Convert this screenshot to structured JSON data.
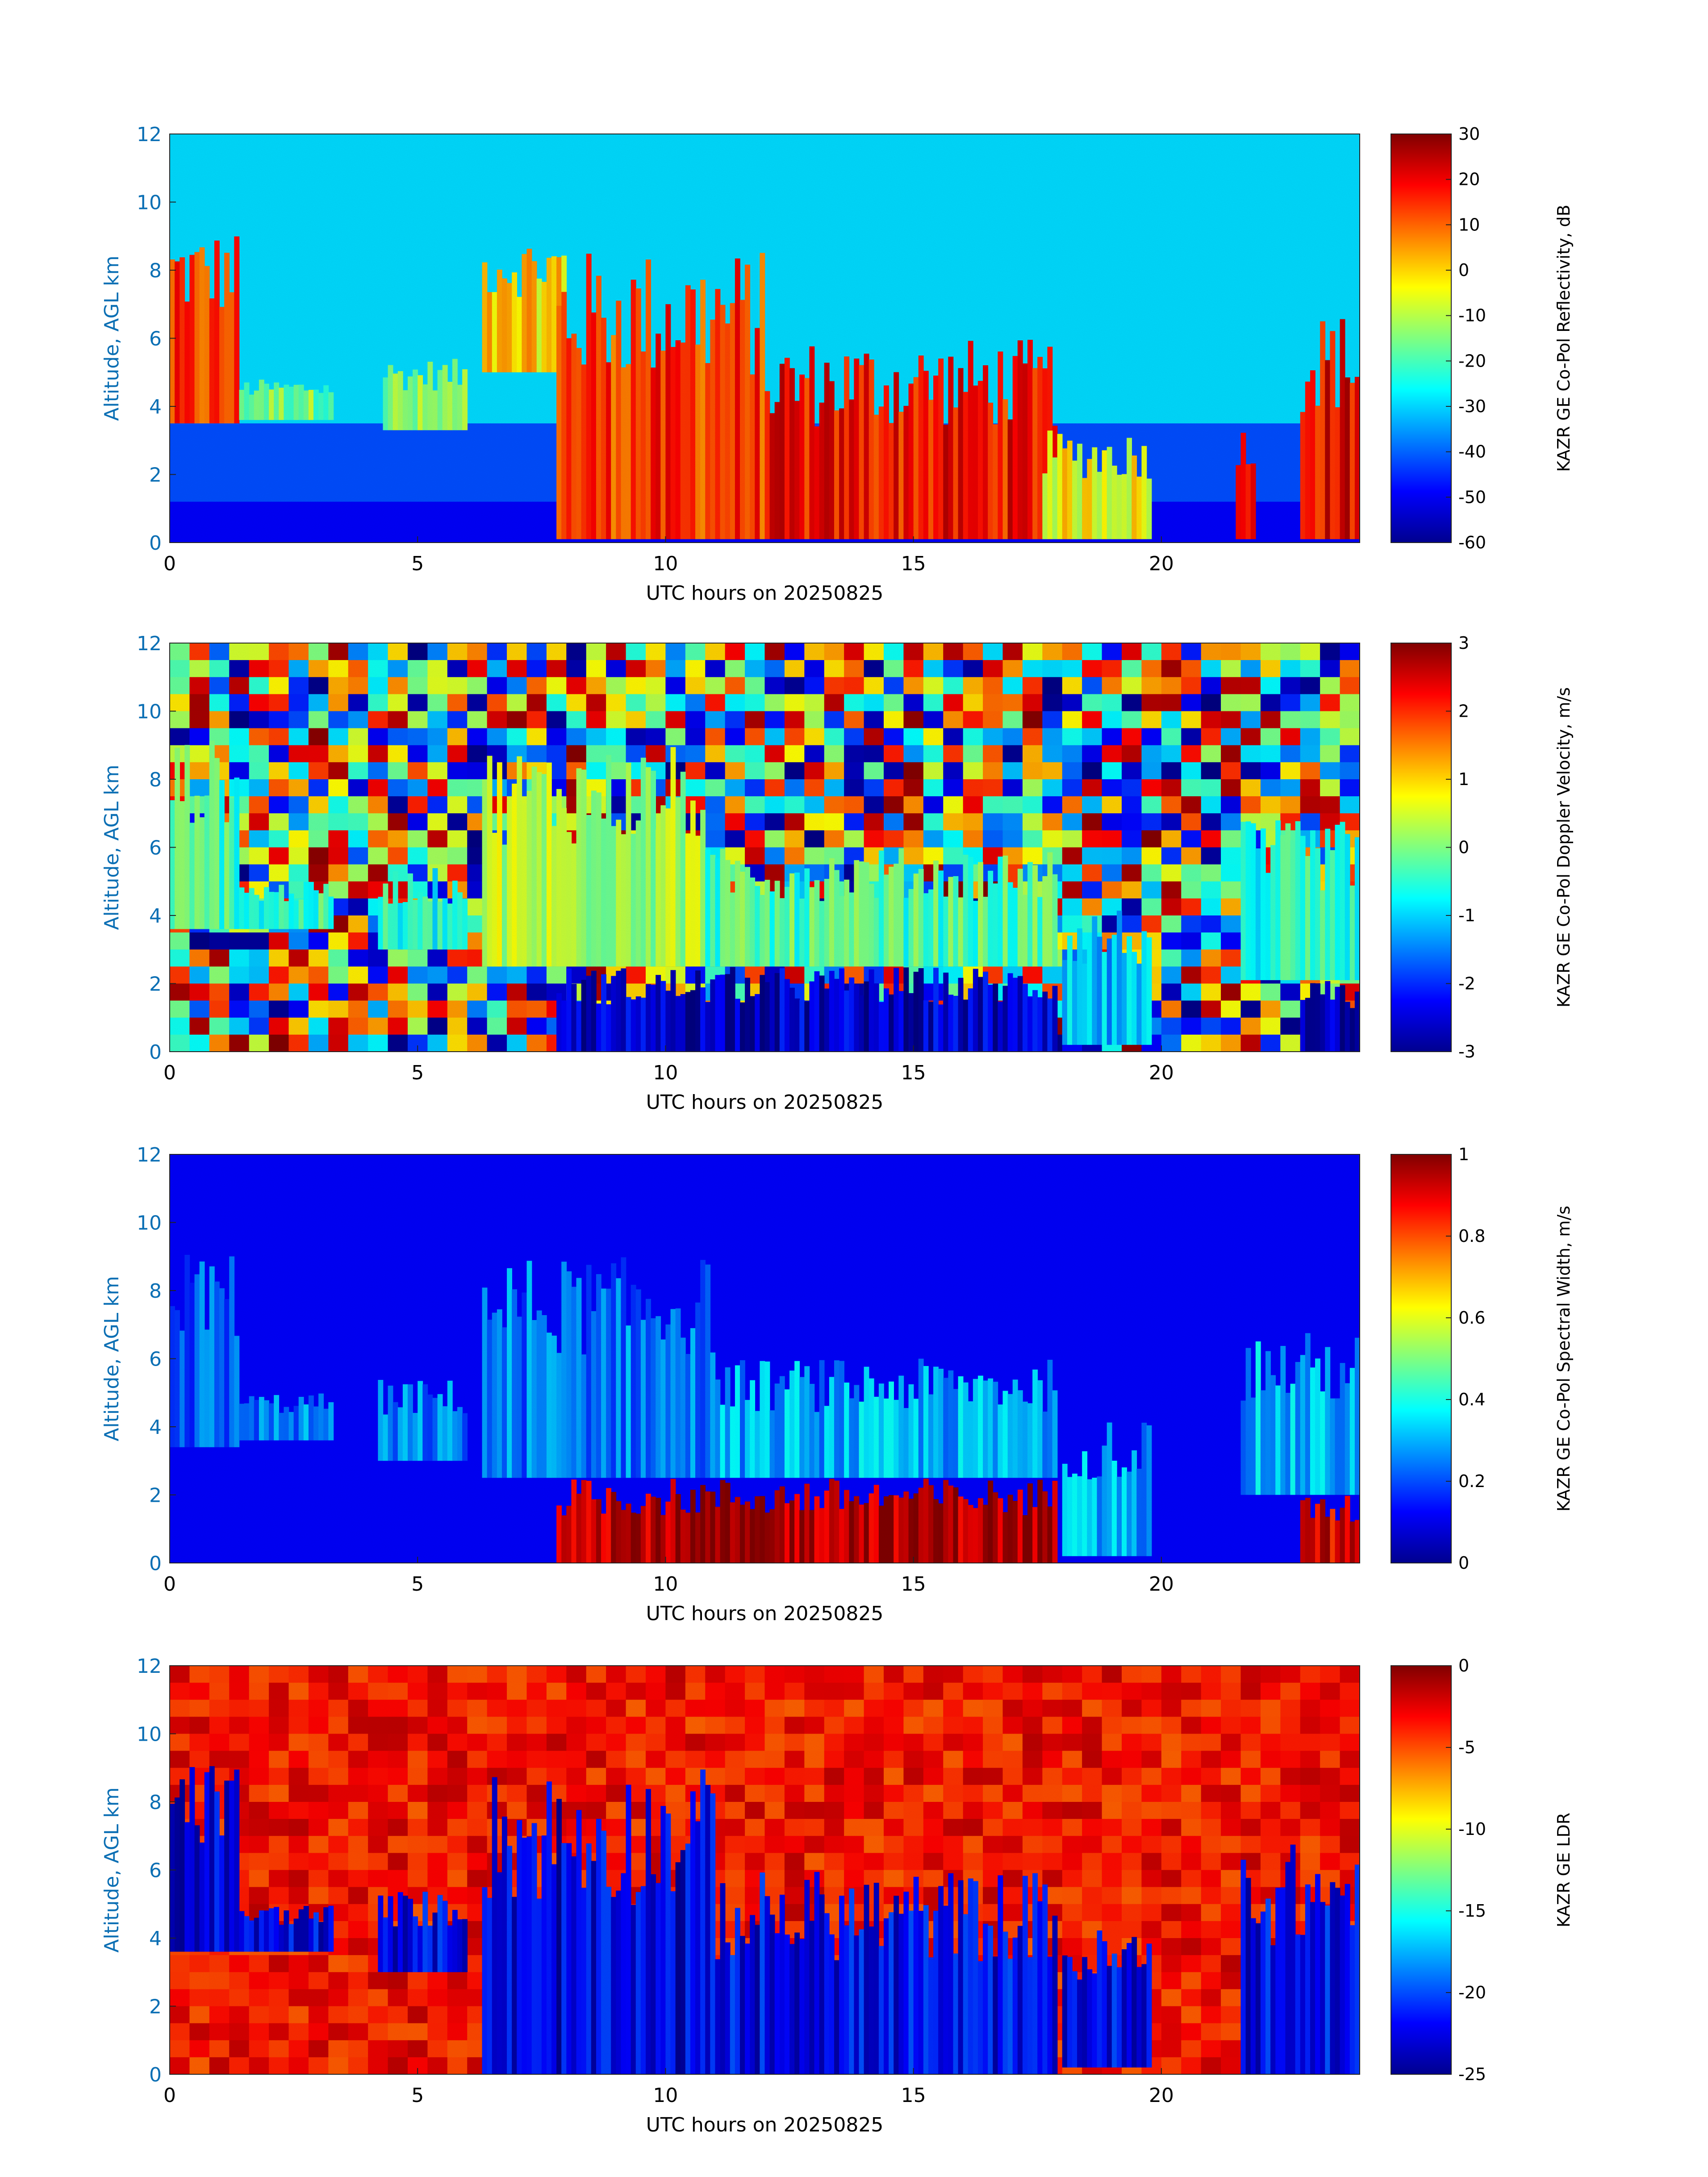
{
  "chart_data": [
    {
      "type": "heatmap",
      "title": "",
      "xlabel": "UTC hours on 20250825",
      "ylabel": "Altitude, AGL km",
      "xlim": [
        0,
        24
      ],
      "ylim": [
        0,
        12
      ],
      "xticks": [
        "0",
        "5",
        "10",
        "15",
        "20"
      ],
      "yticks": [
        "0",
        "2",
        "4",
        "6",
        "8",
        "10",
        "12"
      ],
      "colorbar": {
        "label": "KAZR GE Co-Pol Reflectivity, dB",
        "range": [
          -60,
          30
        ],
        "ticks": [
          "30",
          "20",
          "10",
          "0",
          "-10",
          "-20",
          "-30",
          "-40",
          "-50",
          "-60"
        ],
        "colormap": "jet"
      }
    },
    {
      "type": "heatmap",
      "title": "",
      "xlabel": "UTC hours on 20250825",
      "ylabel": "Altitude, AGL km",
      "xlim": [
        0,
        24
      ],
      "ylim": [
        0,
        12
      ],
      "xticks": [
        "0",
        "5",
        "10",
        "15",
        "20"
      ],
      "yticks": [
        "0",
        "2",
        "4",
        "6",
        "8",
        "10",
        "12"
      ],
      "colorbar": {
        "label": "KAZR GE Co-Pol Doppler Velocity, m/s",
        "range": [
          -3,
          3
        ],
        "ticks": [
          "3",
          "2",
          "1",
          "0",
          "-1",
          "-2",
          "-3"
        ],
        "colormap": "jet"
      }
    },
    {
      "type": "heatmap",
      "title": "",
      "xlabel": "UTC hours on 20250825",
      "ylabel": "Altitude, AGL km",
      "xlim": [
        0,
        24
      ],
      "ylim": [
        0,
        12
      ],
      "xticks": [
        "0",
        "5",
        "10",
        "15",
        "20"
      ],
      "yticks": [
        "0",
        "2",
        "4",
        "6",
        "8",
        "10",
        "12"
      ],
      "colorbar": {
        "label": "KAZR GE Co-Pol Spectral Width, m/s",
        "range": [
          0,
          1
        ],
        "ticks": [
          "1",
          "0.8",
          "0.6",
          "0.4",
          "0.2",
          "0"
        ],
        "colormap": "jet"
      }
    },
    {
      "type": "heatmap",
      "title": "",
      "xlabel": "UTC hours on 20250825",
      "ylabel": "Altitude, AGL km",
      "xlim": [
        0,
        24
      ],
      "ylim": [
        0,
        12
      ],
      "xticks": [
        "0",
        "5",
        "10",
        "15",
        "20"
      ],
      "yticks": [
        "0",
        "2",
        "4",
        "6",
        "8",
        "10",
        "12"
      ],
      "colorbar": {
        "label": "KAZR GE LDR",
        "range": [
          -25,
          0
        ],
        "ticks": [
          "0",
          "-5",
          "-10",
          "-15",
          "-20",
          "-25"
        ],
        "colormap": "jet"
      }
    }
  ]
}
